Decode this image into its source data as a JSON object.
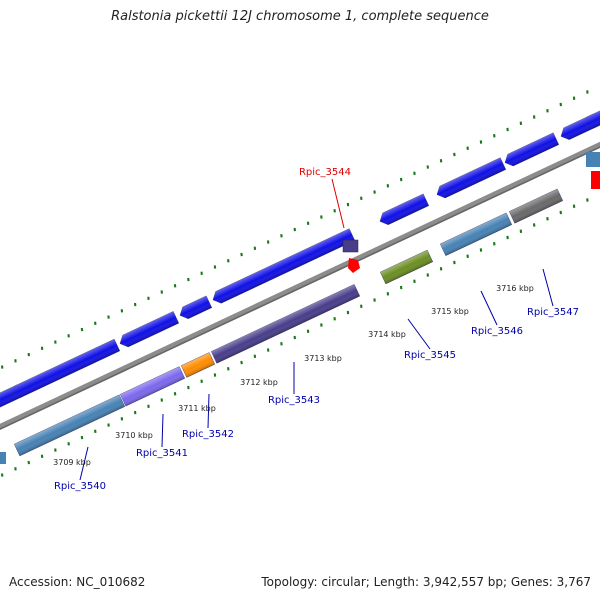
{
  "title": "Ralstonia pickettii 12J chromosome 1, complete sequence",
  "footer": {
    "accession": "Accession: NC_010682",
    "topology": "Topology: circular; Length: 3,942,557 bp; Genes: 3,767"
  },
  "colors": {
    "backbone": "#8c8c8c",
    "tick": "#1a7a1a",
    "forward_gene": "#1010e6",
    "highlight_label": "#dd0000",
    "default_label": "#0000aa"
  },
  "ticks": [
    {
      "label": "3709 kbp"
    },
    {
      "label": "3710 kbp"
    },
    {
      "label": "3711 kbp"
    },
    {
      "label": "3712 kbp"
    },
    {
      "label": "3713 kbp"
    },
    {
      "label": "3714 kbp"
    },
    {
      "label": "3715 kbp"
    },
    {
      "label": "3716 kbp"
    }
  ],
  "genes": [
    {
      "label": "Rpic_3540",
      "strand": "reverse",
      "color": "#4682b4",
      "highlight": false
    },
    {
      "label": "Rpic_3541",
      "strand": "reverse",
      "color": "#7b68ee",
      "highlight": false
    },
    {
      "label": "Rpic_3542",
      "strand": "reverse",
      "color": "#ff8c00",
      "highlight": false
    },
    {
      "label": "Rpic_3543",
      "strand": "reverse",
      "color": "#483d8b",
      "highlight": false
    },
    {
      "label": "Rpic_3544",
      "strand": "forward",
      "color": "#483d8b",
      "highlight": true
    },
    {
      "label": "Rpic_3545",
      "strand": "reverse",
      "color": "#6b8e23",
      "highlight": false
    },
    {
      "label": "Rpic_3546",
      "strand": "reverse",
      "color": "#4682b4",
      "highlight": false
    },
    {
      "label": "Rpic_3547",
      "strand": "reverse",
      "color": "#696969",
      "highlight": false
    }
  ]
}
